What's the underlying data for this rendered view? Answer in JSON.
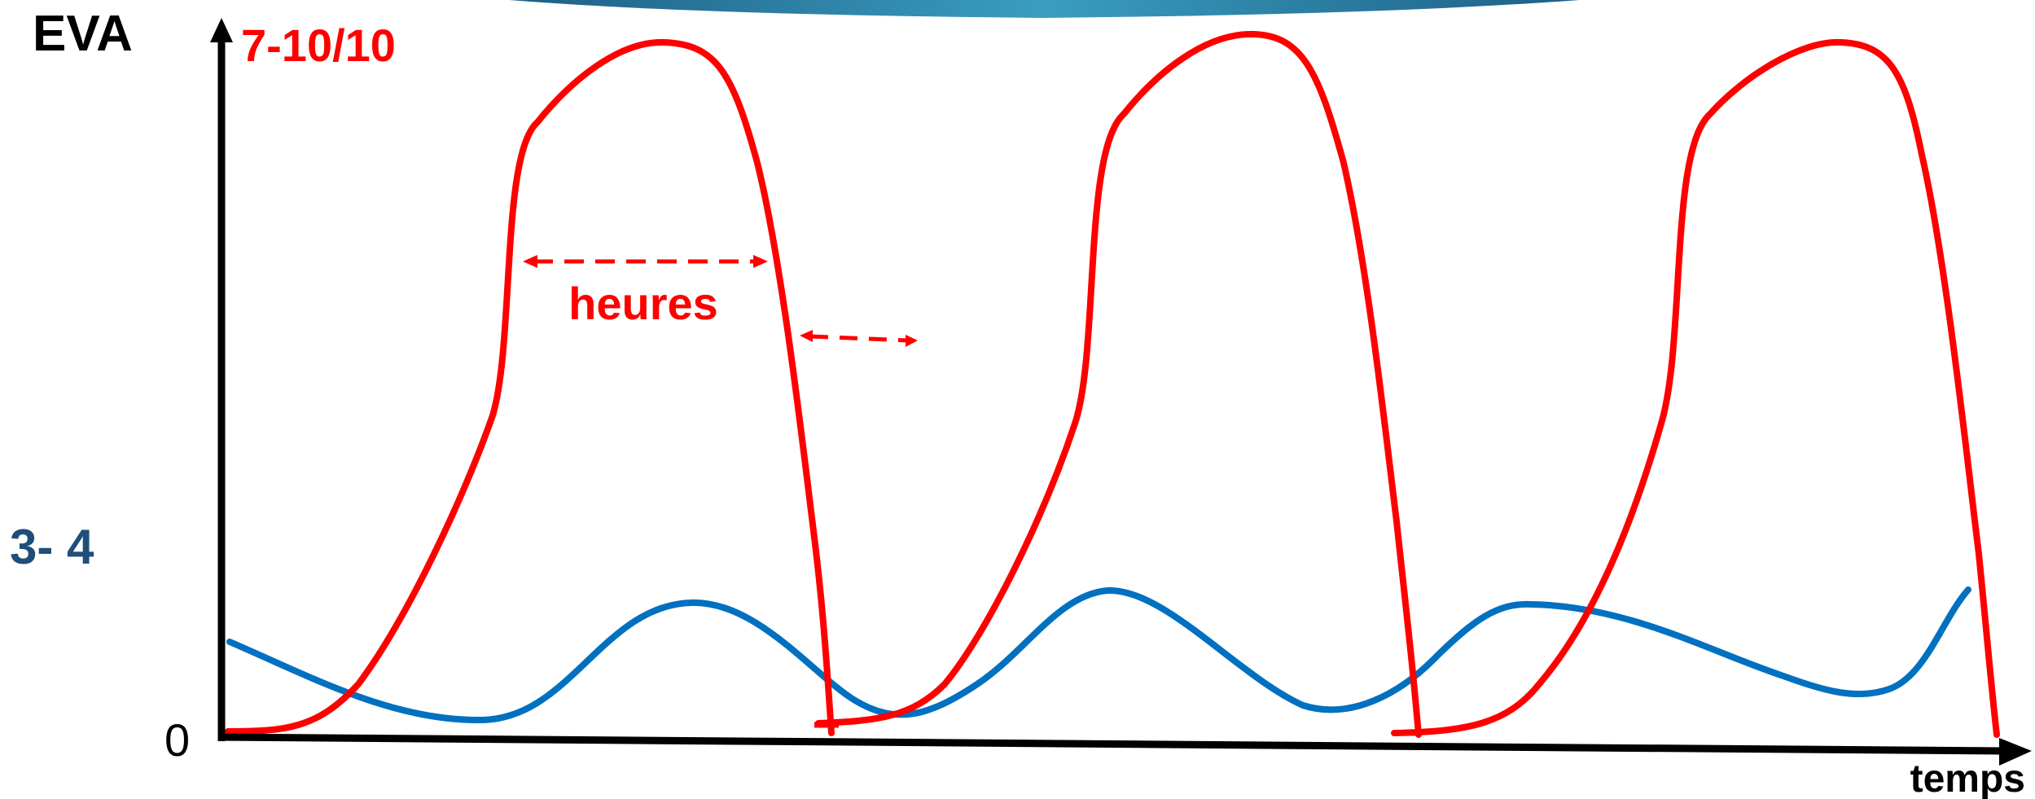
{
  "colors": {
    "acute_pain": "#ff0000",
    "background_pain": "#0070c0",
    "baseline_label": "#1f4e79",
    "axis": "#000000",
    "banner": "#2e86ab"
  },
  "labels": {
    "y_axis": "EVA",
    "peak_level": "7-10/10",
    "baseline_level": "3- 4",
    "origin": "0",
    "x_axis": "temps",
    "duration": "heures"
  },
  "icons": {
    "y_axis_arrow": "arrow-up-icon",
    "x_axis_arrow": "arrow-right-icon",
    "duration_arrow": "double-arrow-icon"
  }
}
